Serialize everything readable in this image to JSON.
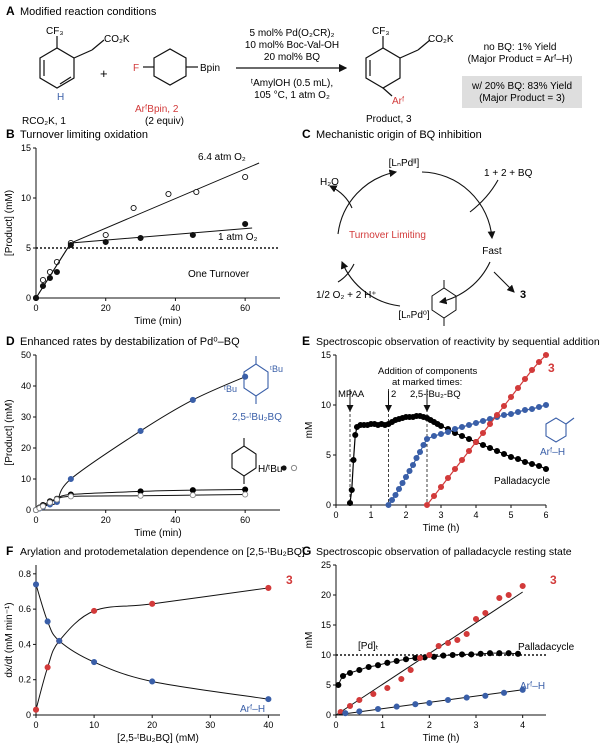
{
  "panels": {
    "A": {
      "letter": "A",
      "title": "Modified reaction conditions"
    },
    "B": {
      "letter": "B",
      "title": "Turnover limiting oxidation"
    },
    "C": {
      "letter": "C",
      "title": "Mechanistic origin of BQ inhibition"
    },
    "D": {
      "letter": "D",
      "title": "Enhanced rates by destabilization of Pd⁰–BQ"
    },
    "E": {
      "letter": "E",
      "title": "Spectroscopic observation of reactivity by sequential addition"
    },
    "F": {
      "letter": "F",
      "title": "Arylation and protodemetalation dependence on [2,5-ᵗBu₂BQ]"
    },
    "G": {
      "letter": "G",
      "title": "Spectroscopic observation of palladacycle resting state"
    }
  },
  "scheme": {
    "cf3": "CF₃",
    "co2k": "CO₂K",
    "h": "H",
    "plus": "+",
    "f": "F",
    "bpin": "Bpin",
    "reactant1": "RCO₂K, 1",
    "reactant2": "ArᶠBpin, 2",
    "reactant2_equiv": "(2 equiv)",
    "cond1": "5 mol% Pd(O₂CR)₂",
    "cond2": "10 mol% Boc-Val-OH",
    "cond3": "20 mol% BQ",
    "cond4": "ᵗAmylOH (0.5 mL),",
    "cond5": "105 °C, 1 atm O₂",
    "arf": "Arᶠ",
    "product": "Product, 3",
    "nobq1": "no BQ: 1% Yield",
    "nobq2": "(Major Product = Arᶠ–H)",
    "bq1": "w/ 20% BQ: 83% Yield",
    "bq2": "(Major Product = 3)"
  },
  "cycle": {
    "pd2": "[LₙPdᴵᴵ]",
    "h2o": "H₂O",
    "reagents": "1 + 2 + BQ",
    "fast": "Fast",
    "turnover": "Turnover Limiting",
    "o2": "1/2 O₂ + 2 H⁺",
    "pd0": "[LₙPd⁰]",
    "prod": "3",
    "colors": {
      "turnover": "#d23a3a"
    }
  },
  "annotations": {
    "B_high": "6.4 atm O₂",
    "B_low": "1 atm O₂",
    "B_line": "One Turnover",
    "D_tbu_label": "2,5-ᵗBu₂BQ",
    "D_tbu_sub": "ᵗBu",
    "D_h_label": "H/ᵗBu",
    "E_add1": "Addition of components",
    "E_add2": "at marked times:",
    "E_mpaa": "MPAA",
    "E_two": "2",
    "E_bq": "2,5-ᵗBu₂-BQ",
    "E_three": "3",
    "E_arfh": "Arᶠ–H",
    "E_pallad": "Palladacycle",
    "F_three": "3",
    "F_arfh": "Arᶠ–H",
    "G_three": "3",
    "G_pdt": "[Pd]ₜ",
    "G_pallad": "Palladacycle",
    "G_arfh": "Arᶠ–H"
  },
  "chart_data": [
    {
      "panel": "B",
      "type": "scatter",
      "xlabel": "Time (min)",
      "ylabel": "[Product] (mM)",
      "xlim": [
        0,
        70
      ],
      "ylim": [
        0,
        15
      ],
      "xticks": [
        0,
        20,
        40,
        60
      ],
      "yticks": [
        0,
        5,
        10,
        15
      ],
      "reference_line": {
        "y": 5,
        "label": "One Turnover"
      },
      "series": [
        {
          "name": "6.4 atm O₂",
          "style": "open",
          "x": [
            0,
            2,
            4,
            6,
            10,
            20,
            28,
            38,
            46,
            60
          ],
          "y": [
            0,
            1.8,
            2.6,
            3.6,
            5.5,
            6.3,
            9.0,
            10.4,
            10.6,
            12.1
          ],
          "fit": [
            [
              0,
              0
            ],
            [
              10,
              5.5
            ],
            [
              64,
              13.5
            ]
          ]
        },
        {
          "name": "1 atm O₂",
          "style": "filled",
          "x": [
            0,
            2,
            4,
            6,
            10,
            20,
            30,
            45,
            60
          ],
          "y": [
            0,
            1.2,
            2.0,
            2.6,
            5.3,
            5.6,
            6.0,
            6.3,
            7.4
          ],
          "fit": [
            [
              0,
              0
            ],
            [
              10,
              5.5
            ],
            [
              62,
              7.0
            ]
          ]
        }
      ]
    },
    {
      "panel": "D",
      "type": "scatter",
      "xlabel": "Time (min)",
      "ylabel": "[Product] (mM)",
      "xlim": [
        0,
        70
      ],
      "ylim": [
        0,
        50
      ],
      "xticks": [
        0,
        20,
        40,
        60
      ],
      "yticks": [
        0,
        10,
        20,
        30,
        40,
        50
      ],
      "series": [
        {
          "name": "2,5-ᵗBu₂BQ",
          "color": "#3a5fa8",
          "style": "filled",
          "x": [
            0,
            1,
            2,
            4,
            6,
            10,
            30,
            45,
            60
          ],
          "y": [
            0,
            0.5,
            1.0,
            1.8,
            2.6,
            10,
            25.5,
            35.5,
            43
          ],
          "fit": "smooth"
        },
        {
          "name": "ᵗBu",
          "color": "#000000",
          "style": "filled",
          "x": [
            0,
            1,
            2,
            4,
            6,
            10,
            30,
            45,
            60
          ],
          "y": [
            0,
            0.8,
            1.6,
            2.8,
            3.6,
            5.0,
            6.0,
            6.4,
            6.6
          ],
          "fit": "smooth"
        },
        {
          "name": "H",
          "color": "#888888",
          "style": "open",
          "x": [
            0,
            1,
            2,
            4,
            6,
            10,
            30,
            45,
            60
          ],
          "y": [
            0,
            0.6,
            1.2,
            2.4,
            3.4,
            4.4,
            4.6,
            4.8,
            5.0
          ],
          "fit": "smooth"
        }
      ]
    },
    {
      "panel": "E",
      "type": "line",
      "xlabel": "Time (h)",
      "ylabel": "mM",
      "xlim": [
        0,
        6
      ],
      "ylim": [
        0,
        15
      ],
      "xticks": [
        0,
        1,
        2,
        3,
        4,
        5,
        6
      ],
      "yticks": [
        0,
        5,
        10,
        15
      ],
      "additions": [
        {
          "x": 0.4,
          "label": "MPAA"
        },
        {
          "x": 1.5,
          "label": "2"
        },
        {
          "x": 2.6,
          "label": "2,5-ᵗBu₂-BQ"
        }
      ],
      "series": [
        {
          "name": "Palladacycle",
          "color": "#000000",
          "x": [
            0.4,
            0.45,
            0.5,
            0.55,
            0.6,
            0.7,
            0.8,
            0.9,
            1.0,
            1.1,
            1.2,
            1.3,
            1.4,
            1.5,
            1.6,
            1.7,
            1.8,
            1.9,
            2.0,
            2.1,
            2.2,
            2.3,
            2.4,
            2.5,
            2.6,
            2.7,
            2.8,
            2.9,
            3.0,
            3.2,
            3.4,
            3.6,
            3.8,
            4.0,
            4.2,
            4.4,
            4.6,
            4.8,
            5.0,
            5.2,
            5.4,
            5.6,
            5.8,
            6.0
          ],
          "y": [
            0.2,
            1.5,
            4.5,
            7.0,
            7.8,
            8.0,
            8.0,
            8.0,
            8.1,
            8.1,
            8.0,
            8.1,
            8.0,
            8.1,
            8.3,
            8.5,
            8.6,
            8.7,
            8.8,
            8.8,
            8.8,
            8.9,
            8.9,
            8.8,
            8.7,
            8.5,
            8.3,
            8.1,
            7.9,
            7.6,
            7.2,
            6.9,
            6.6,
            6.3,
            6.0,
            5.7,
            5.4,
            5.1,
            4.8,
            4.6,
            4.3,
            4.1,
            3.9,
            3.6
          ]
        },
        {
          "name": "Arᶠ–H",
          "color": "#3a5fa8",
          "x": [
            1.5,
            1.6,
            1.7,
            1.8,
            1.9,
            2.0,
            2.1,
            2.2,
            2.3,
            2.4,
            2.5,
            2.6,
            2.8,
            3.0,
            3.2,
            3.4,
            3.6,
            3.8,
            4.0,
            4.2,
            4.4,
            4.6,
            4.8,
            5.0,
            5.2,
            5.4,
            5.6,
            5.8,
            6.0
          ],
          "y": [
            0,
            0.5,
            1.0,
            1.6,
            2.2,
            2.8,
            3.4,
            4.0,
            4.7,
            5.3,
            6.0,
            6.6,
            6.9,
            7.1,
            7.3,
            7.6,
            7.8,
            8.0,
            8.2,
            8.4,
            8.6,
            8.8,
            9.0,
            9.1,
            9.3,
            9.5,
            9.6,
            9.8,
            10.0
          ]
        },
        {
          "name": "3",
          "color": "#d23a3a",
          "x": [
            2.6,
            2.8,
            3.0,
            3.2,
            3.4,
            3.6,
            3.8,
            4.0,
            4.2,
            4.4,
            4.6,
            4.8,
            5.0,
            5.2,
            5.4,
            5.6,
            5.8,
            6.0
          ],
          "y": [
            0,
            0.9,
            1.8,
            2.7,
            3.6,
            4.5,
            5.4,
            6.3,
            7.2,
            8.1,
            9.0,
            9.9,
            10.8,
            11.7,
            12.6,
            13.5,
            14.3,
            15.0
          ]
        }
      ]
    },
    {
      "panel": "F",
      "type": "scatter",
      "xlabel": "[2,5-ᵗBu₂BQ] (mM)",
      "ylabel": "dx/dt (mM min⁻¹)",
      "xlim": [
        0,
        42
      ],
      "ylim": [
        0,
        0.85
      ],
      "xticks": [
        0,
        10,
        20,
        30,
        40
      ],
      "yticks": [
        0,
        0.2,
        0.4,
        0.6,
        0.8
      ],
      "series": [
        {
          "name": "3",
          "color": "#d23a3a",
          "x": [
            0,
            2,
            4,
            10,
            20,
            40
          ],
          "y": [
            0.03,
            0.27,
            0.42,
            0.59,
            0.63,
            0.72
          ],
          "fit": "smooth"
        },
        {
          "name": "Arᶠ–H",
          "color": "#3a5fa8",
          "x": [
            0,
            2,
            4,
            10,
            20,
            40
          ],
          "y": [
            0.74,
            0.53,
            0.42,
            0.3,
            0.19,
            0.09
          ],
          "fit": "smooth"
        }
      ]
    },
    {
      "panel": "G",
      "type": "scatter",
      "xlabel": "Time (h)",
      "ylabel": "mM",
      "xlim": [
        0,
        4.5
      ],
      "ylim": [
        0,
        25
      ],
      "xticks": [
        0,
        1,
        2,
        3,
        4
      ],
      "yticks": [
        0,
        5,
        10,
        15,
        20,
        25
      ],
      "reference_line": {
        "y": 10,
        "label": "[Pd]ₜ"
      },
      "series": [
        {
          "name": "Palladacycle",
          "color": "#000000",
          "x": [
            0.05,
            0.15,
            0.3,
            0.5,
            0.7,
            0.9,
            1.1,
            1.3,
            1.5,
            1.7,
            1.9,
            2.1,
            2.3,
            2.5,
            2.7,
            2.9,
            3.1,
            3.3,
            3.5,
            3.7,
            3.9
          ],
          "y": [
            5.0,
            6.5,
            7.0,
            7.5,
            8.0,
            8.3,
            8.7,
            9.0,
            9.3,
            9.5,
            9.6,
            9.7,
            9.9,
            10.0,
            10.1,
            10.1,
            10.2,
            10.3,
            10.3,
            10.3,
            10.2
          ],
          "fit": "smooth"
        },
        {
          "name": "3",
          "color": "#d23a3a",
          "x": [
            0.1,
            0.3,
            0.5,
            0.8,
            1.1,
            1.4,
            1.6,
            1.8,
            2.0,
            2.2,
            2.4,
            2.6,
            2.8,
            3.0,
            3.2,
            3.5,
            3.7,
            4.0
          ],
          "y": [
            0.5,
            1.5,
            2.5,
            3.5,
            4.5,
            6.0,
            7.5,
            9.5,
            10.0,
            11.5,
            12.0,
            12.5,
            13.5,
            16.0,
            17.0,
            19.5,
            20.0,
            21.5
          ],
          "fit": [
            [
              0,
              0
            ],
            [
              4,
              20.5
            ]
          ]
        },
        {
          "name": "Arᶠ–H",
          "color": "#3a5fa8",
          "x": [
            0.2,
            0.5,
            0.9,
            1.3,
            1.7,
            2.0,
            2.4,
            2.8,
            3.2,
            3.6,
            4.0
          ],
          "y": [
            0.3,
            0.6,
            1.0,
            1.4,
            1.8,
            2.0,
            2.5,
            2.9,
            3.2,
            3.7,
            4.2
          ],
          "fit": [
            [
              0,
              0
            ],
            [
              4,
              4.2
            ]
          ]
        }
      ]
    }
  ]
}
